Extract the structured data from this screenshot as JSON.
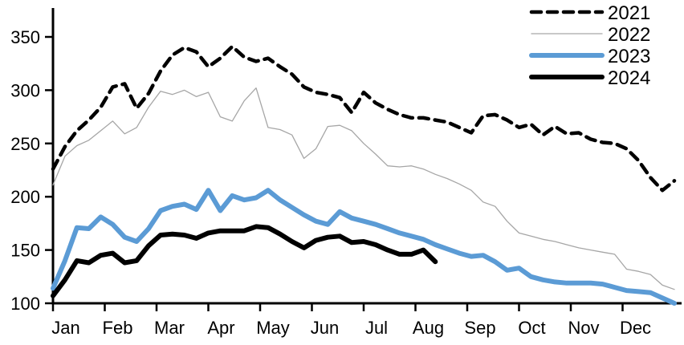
{
  "chart_data": {
    "type": "line",
    "title": "",
    "xlabel": "",
    "ylabel": "",
    "x_axis": {
      "tick_labels": [
        "Jan",
        "Feb",
        "Mar",
        "Apr",
        "May",
        "Jun",
        "Jul",
        "Aug",
        "Sep",
        "Oct",
        "Nov",
        "Dec"
      ],
      "unit": "weekly points across the year"
    },
    "y_axis": {
      "tick_values": [
        100,
        150,
        200,
        250,
        300,
        350
      ],
      "ylim": [
        100,
        377
      ]
    },
    "grid": "off",
    "legend": {
      "position": "top-right",
      "entries": [
        "2021",
        "2022",
        "2023",
        "2024"
      ]
    },
    "colors": {
      "black": "#000000",
      "gray": "#a6a6a6",
      "blue": "#5b9bd5"
    },
    "series": [
      {
        "name": "2022",
        "style": "solid",
        "color": "#a6a6a6",
        "thickness": 1.3,
        "values": [
          211,
          238,
          248,
          253,
          262,
          271,
          259,
          265,
          284,
          299,
          296,
          300,
          294,
          298,
          275,
          271,
          290,
          302,
          265,
          263,
          258,
          236,
          245,
          266,
          267,
          262,
          250,
          240,
          229,
          228,
          229,
          226,
          221,
          217,
          212,
          206,
          195,
          191,
          177,
          166,
          163,
          160,
          158,
          155,
          152,
          150,
          148,
          146,
          132,
          130,
          127,
          117,
          113
        ]
      },
      {
        "name": "2021",
        "style": "dashed",
        "color": "#000000",
        "thickness": 4.5,
        "values": [
          226,
          247,
          262,
          272,
          284,
          303,
          306,
          283,
          297,
          318,
          333,
          340,
          336,
          322,
          330,
          341,
          331,
          327,
          330,
          322,
          315,
          303,
          298,
          296,
          293,
          279,
          298,
          288,
          282,
          277,
          274,
          274,
          272,
          270,
          265,
          260,
          276,
          277,
          272,
          265,
          268,
          258,
          266,
          259,
          260,
          254,
          251,
          250,
          245,
          234,
          218,
          206,
          215
        ]
      },
      {
        "name": "2023",
        "style": "solid",
        "color": "#5b9bd5",
        "thickness": 6,
        "values": [
          114,
          140,
          171,
          170,
          181,
          174,
          162,
          158,
          170,
          187,
          191,
          193,
          188,
          206,
          187,
          201,
          197,
          199,
          206,
          197,
          190,
          183,
          177,
          174,
          186,
          180,
          177,
          174,
          170,
          166,
          163,
          160,
          155,
          151,
          147,
          144,
          145,
          139,
          131,
          133,
          125,
          122,
          120,
          119,
          119,
          119,
          118,
          115,
          112,
          111,
          110,
          105,
          100
        ]
      },
      {
        "name": "2024",
        "style": "solid",
        "color": "#000000",
        "thickness": 6,
        "values": [
          107,
          122,
          140,
          138,
          145,
          147,
          138,
          140,
          154,
          164,
          165,
          164,
          161,
          166,
          168,
          168,
          168,
          172,
          171,
          165,
          158,
          152,
          159,
          162,
          163,
          157,
          158,
          155,
          150,
          146,
          146,
          150,
          139
        ]
      }
    ]
  }
}
